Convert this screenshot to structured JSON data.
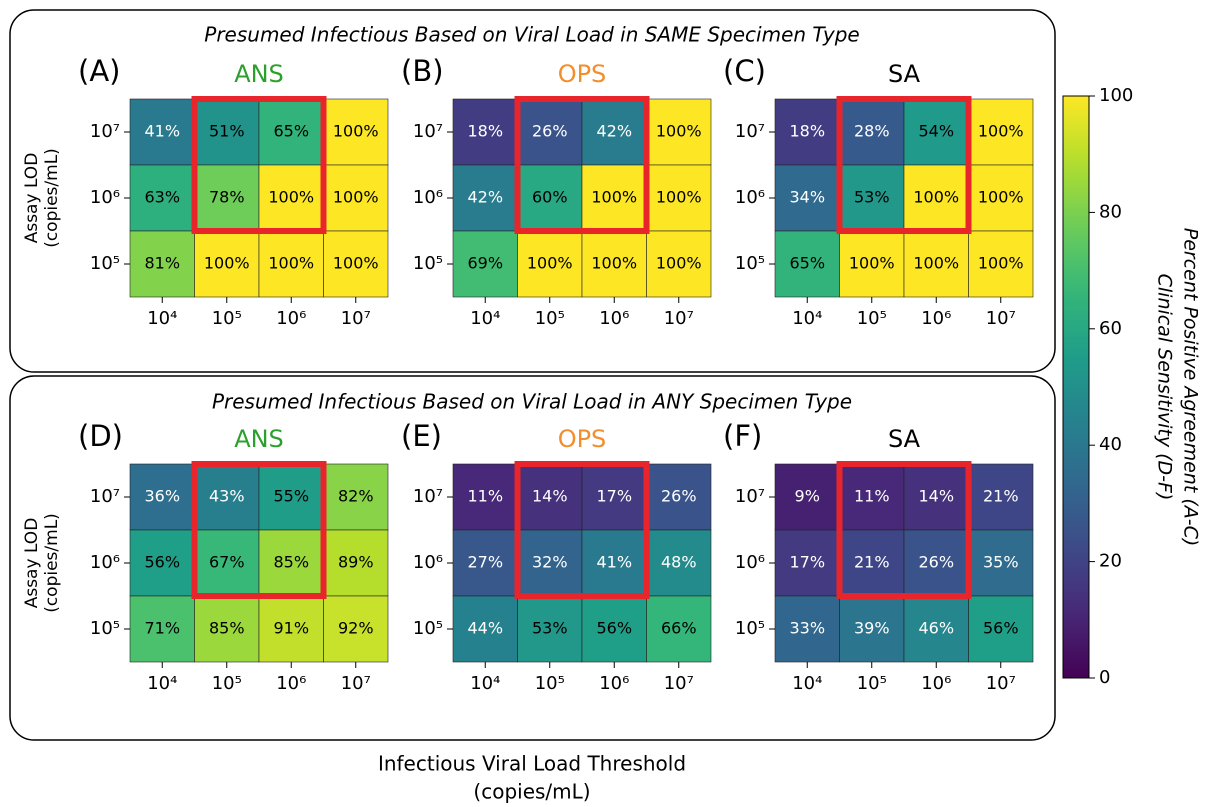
{
  "panels": [
    {
      "title": "Presumed Infectious Based on Viral Load in SAME Specimen Type"
    },
    {
      "title": "Presumed Infectious Based on Viral Load in ANY Specimen Type"
    }
  ],
  "xlabel": [
    "Infectious Viral Load Threshold",
    "(copies/mL)"
  ],
  "colorbar": {
    "label": [
      "Percent Positive Agreement (A-C)",
      "Clinical Sensitivity (D-F)"
    ],
    "zlim": [
      0,
      100
    ],
    "ticks": [
      0,
      20,
      40,
      60,
      80,
      100
    ],
    "cmap": "viridis"
  },
  "chart_data": [
    {
      "type": "heatmap",
      "label": "(A)",
      "title": "ANS",
      "title_color": "#2ca02c",
      "ylabel": [
        "Assay LOD",
        "(copies/mL)"
      ],
      "x": [
        "10⁴",
        "10⁵",
        "10⁶",
        "10⁷"
      ],
      "y": [
        "10⁷",
        "10⁶",
        "10⁵"
      ],
      "values": [
        [
          41,
          51,
          65,
          100
        ],
        [
          63,
          78,
          100,
          100
        ],
        [
          81,
          100,
          100,
          100
        ]
      ],
      "value_labels": [
        [
          "41%",
          "51%",
          "65%",
          "100%"
        ],
        [
          "63%",
          "78%",
          "100%",
          "100%"
        ],
        [
          "81%",
          "100%",
          "100%",
          "100%"
        ]
      ]
    },
    {
      "type": "heatmap",
      "label": "(B)",
      "title": "OPS",
      "title_color": "#f28e2b",
      "x": [
        "10⁴",
        "10⁵",
        "10⁶",
        "10⁷"
      ],
      "y": [
        "10⁷",
        "10⁶",
        "10⁵"
      ],
      "values": [
        [
          18,
          26,
          42,
          100
        ],
        [
          42,
          60,
          100,
          100
        ],
        [
          69,
          100,
          100,
          100
        ]
      ],
      "value_labels": [
        [
          "18%",
          "26%",
          "42%",
          "100%"
        ],
        [
          "42%",
          "60%",
          "100%",
          "100%"
        ],
        [
          "69%",
          "100%",
          "100%",
          "100%"
        ]
      ]
    },
    {
      "type": "heatmap",
      "label": "(C)",
      "title": "SA",
      "title_color": "#000000",
      "x": [
        "10⁴",
        "10⁵",
        "10⁶",
        "10⁷"
      ],
      "y": [
        "10⁷",
        "10⁶",
        "10⁵"
      ],
      "values": [
        [
          18,
          28,
          54,
          100
        ],
        [
          34,
          53,
          100,
          100
        ],
        [
          65,
          100,
          100,
          100
        ]
      ],
      "value_labels": [
        [
          "18%",
          "28%",
          "54%",
          "100%"
        ],
        [
          "34%",
          "53%",
          "100%",
          "100%"
        ],
        [
          "65%",
          "100%",
          "100%",
          "100%"
        ]
      ]
    },
    {
      "type": "heatmap",
      "label": "(D)",
      "title": "ANS",
      "title_color": "#2ca02c",
      "ylabel": [
        "Assay LOD",
        "(copies/mL)"
      ],
      "x": [
        "10⁴",
        "10⁵",
        "10⁶",
        "10⁷"
      ],
      "y": [
        "10⁷",
        "10⁶",
        "10⁵"
      ],
      "values": [
        [
          36,
          43,
          55,
          82
        ],
        [
          56,
          67,
          85,
          89
        ],
        [
          71,
          85,
          91,
          92
        ]
      ],
      "value_labels": [
        [
          "36%",
          "43%",
          "55%",
          "82%"
        ],
        [
          "56%",
          "67%",
          "85%",
          "89%"
        ],
        [
          "71%",
          "85%",
          "91%",
          "92%"
        ]
      ]
    },
    {
      "type": "heatmap",
      "label": "(E)",
      "title": "OPS",
      "title_color": "#f28e2b",
      "x": [
        "10⁴",
        "10⁵",
        "10⁶",
        "10⁷"
      ],
      "y": [
        "10⁷",
        "10⁶",
        "10⁵"
      ],
      "values": [
        [
          11,
          14,
          17,
          26
        ],
        [
          27,
          32,
          41,
          48
        ],
        [
          44,
          53,
          56,
          66
        ]
      ],
      "value_labels": [
        [
          "11%",
          "14%",
          "17%",
          "26%"
        ],
        [
          "27%",
          "32%",
          "41%",
          "48%"
        ],
        [
          "44%",
          "53%",
          "56%",
          "66%"
        ]
      ]
    },
    {
      "type": "heatmap",
      "label": "(F)",
      "title": "SA",
      "title_color": "#000000",
      "x": [
        "10⁴",
        "10⁵",
        "10⁶",
        "10⁷"
      ],
      "y": [
        "10⁷",
        "10⁶",
        "10⁵"
      ],
      "values": [
        [
          9,
          11,
          14,
          21
        ],
        [
          17,
          21,
          26,
          35
        ],
        [
          33,
          39,
          46,
          56
        ]
      ],
      "value_labels": [
        [
          "9%",
          "11%",
          "14%",
          "21%"
        ],
        [
          "17%",
          "21%",
          "26%",
          "35%"
        ],
        [
          "33%",
          "39%",
          "46%",
          "56%"
        ]
      ]
    }
  ]
}
